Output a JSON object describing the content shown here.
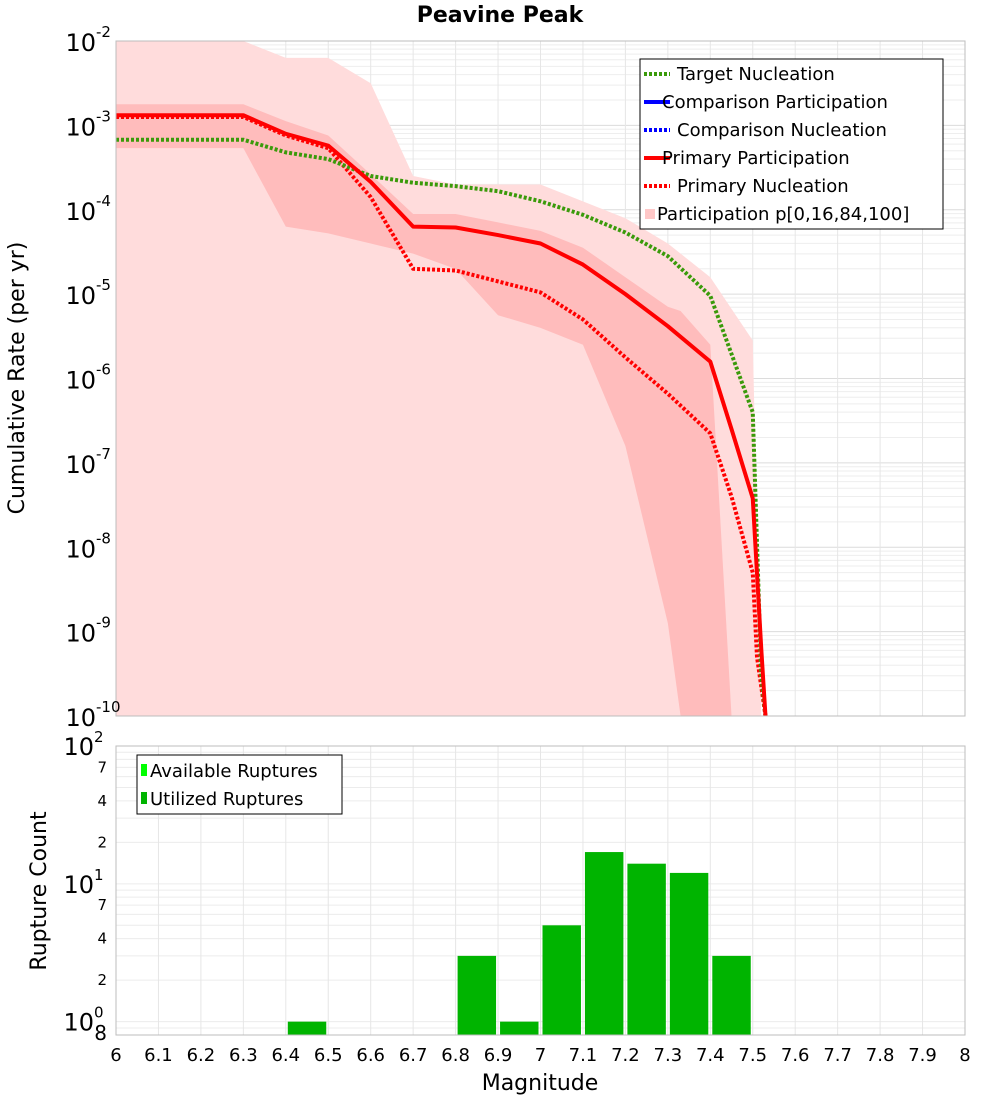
{
  "title": "Peavine Peak",
  "colors": {
    "target_nucleation": "#3a9a0a",
    "comparison": "#0000ff",
    "primary": "#ff0000",
    "band_outer": "#ffdcdc",
    "band_inner": "#ffbcbc",
    "bars": "#00b400",
    "available": "#00ff00",
    "grid": "#e8e8e8",
    "frame": "#bdbdbd"
  },
  "chart_data": [
    {
      "type": "line",
      "title": "Peavine Peak",
      "xlabel": "Magnitude",
      "ylabel": "Cumulative Rate (per yr)",
      "xlim": [
        6,
        8
      ],
      "ylim_exponent": [
        -10,
        -2
      ],
      "y_scale": "log10",
      "y_ticks": [
        {
          "base": "10",
          "exp": "-2"
        },
        {
          "base": "10",
          "exp": "-3"
        },
        {
          "base": "10",
          "exp": "-4"
        },
        {
          "base": "10",
          "exp": "-5"
        },
        {
          "base": "10",
          "exp": "-6"
        },
        {
          "base": "10",
          "exp": "-7"
        },
        {
          "base": "10",
          "exp": "-8"
        },
        {
          "base": "10",
          "exp": "-9"
        },
        {
          "base": "10",
          "exp": "-10"
        }
      ],
      "legend": {
        "position": "top-right",
        "entries": [
          {
            "label": "Target Nucleation",
            "style": "dotted",
            "color_key": "target_nucleation"
          },
          {
            "label": "Comparison Participation",
            "style": "solid",
            "color_key": "comparison"
          },
          {
            "label": "Comparison Nucleation",
            "style": "dotted",
            "color_key": "comparison"
          },
          {
            "label": "Primary Participation",
            "style": "solid",
            "color_key": "primary"
          },
          {
            "label": "Primary Nucleation",
            "style": "dotted",
            "color_key": "primary"
          },
          {
            "label": "Participation p[0,16,84,100]",
            "style": "band",
            "color_key": "band_outer"
          }
        ]
      },
      "series": [
        {
          "name": "Target Nucleation",
          "style": "dotted",
          "x": [
            6.0,
            6.3,
            6.4,
            6.5,
            6.6,
            6.7,
            6.8,
            6.9,
            7.0,
            7.1,
            7.2,
            7.3,
            7.4,
            7.5,
            7.52,
            7.53
          ],
          "log10_y": [
            -3.17,
            -3.17,
            -3.32,
            -3.4,
            -3.6,
            -3.68,
            -3.72,
            -3.78,
            -3.9,
            -4.06,
            -4.27,
            -4.55,
            -5.02,
            -6.4,
            -9.5,
            -10.0
          ]
        },
        {
          "name": "Primary Participation",
          "style": "solid",
          "x": [
            6.0,
            6.3,
            6.4,
            6.5,
            6.6,
            6.7,
            6.8,
            6.9,
            7.0,
            7.1,
            7.2,
            7.3,
            7.4,
            7.45,
            7.5,
            7.52,
            7.53
          ],
          "log10_y": [
            -2.88,
            -2.88,
            -3.1,
            -3.24,
            -3.67,
            -4.2,
            -4.21,
            -4.3,
            -4.4,
            -4.65,
            -5.0,
            -5.38,
            -5.8,
            -6.6,
            -7.42,
            -9.2,
            -10.0
          ]
        },
        {
          "name": "Primary Nucleation",
          "style": "dotted",
          "x": [
            6.0,
            6.3,
            6.4,
            6.5,
            6.6,
            6.7,
            6.8,
            6.9,
            7.0,
            7.1,
            7.2,
            7.3,
            7.4,
            7.45,
            7.5,
            7.51,
            7.53
          ],
          "log10_y": [
            -2.9,
            -2.9,
            -3.12,
            -3.27,
            -3.85,
            -4.7,
            -4.72,
            -4.85,
            -4.98,
            -5.3,
            -5.75,
            -6.18,
            -6.65,
            -7.4,
            -8.3,
            -9.3,
            -10.0
          ]
        }
      ],
      "bands": [
        {
          "name": "p0-p100",
          "x": [
            6.0,
            6.3,
            6.4,
            6.5,
            6.6,
            6.7,
            6.8,
            6.9,
            7.0,
            7.1,
            7.2,
            7.3,
            7.4,
            7.5,
            7.52
          ],
          "log10_upper": [
            -2.0,
            -2.0,
            -2.2,
            -2.2,
            -2.5,
            -3.6,
            -3.7,
            -3.7,
            -3.7,
            -3.9,
            -4.1,
            -4.4,
            -4.8,
            -5.55,
            -10.0
          ],
          "log10_lower": [
            -10.0,
            -10.0,
            -10.0,
            -10.0,
            -10.0,
            -10.0,
            -10.0,
            -10.0,
            -10.0,
            -10.0,
            -10.0,
            -10.0,
            -10.0,
            -10.0,
            -10.0
          ]
        },
        {
          "name": "p16-p84",
          "x": [
            6.0,
            6.3,
            6.4,
            6.5,
            6.6,
            6.7,
            6.8,
            6.9,
            7.0,
            7.1,
            7.2,
            7.3,
            7.33,
            7.4,
            7.45
          ],
          "log10_upper": [
            -2.75,
            -2.75,
            -2.95,
            -3.12,
            -3.58,
            -4.05,
            -4.05,
            -4.15,
            -4.25,
            -4.45,
            -4.8,
            -5.15,
            -5.2,
            -5.6,
            -10.0
          ],
          "log10_lower": [
            -3.27,
            -3.27,
            -4.2,
            -4.28,
            -4.4,
            -4.52,
            -4.7,
            -5.25,
            -5.4,
            -5.6,
            -6.8,
            -8.9,
            -10.0,
            -10.0,
            -10.0
          ]
        }
      ]
    },
    {
      "type": "bar",
      "xlabel": "Magnitude",
      "ylabel": "Rupture Count",
      "y_scale": "log10",
      "ylim": [
        0.8,
        100
      ],
      "y_tick_labels": [
        {
          "value": 100,
          "base": "10",
          "exp": "2",
          "major": true
        },
        {
          "value": 70,
          "label": "7",
          "major": false
        },
        {
          "value": 40,
          "label": "4",
          "major": false
        },
        {
          "value": 20,
          "label": "2",
          "major": false
        },
        {
          "value": 10,
          "base": "10",
          "exp": "1",
          "major": true
        },
        {
          "value": 7,
          "label": "7",
          "major": false
        },
        {
          "value": 4,
          "label": "4",
          "major": false
        },
        {
          "value": 2,
          "label": "2",
          "major": false
        },
        {
          "value": 1,
          "base": "10",
          "exp": "0",
          "major": true
        },
        {
          "value": 0.8,
          "label": "8",
          "major": false
        }
      ],
      "legend": {
        "position": "top-left",
        "entries": [
          {
            "label": "Available Ruptures",
            "color_key": "available"
          },
          {
            "label": "Utilized Ruptures",
            "color_key": "bars"
          }
        ]
      },
      "bin_width": 0.1,
      "bins": [
        6.4,
        6.8,
        6.9,
        7.0,
        7.1,
        7.2,
        7.3,
        7.4
      ],
      "values": [
        1,
        3,
        1,
        5,
        17,
        14,
        12,
        3
      ]
    }
  ],
  "x_tick_labels": [
    "6",
    "6.1",
    "6.2",
    "6.3",
    "6.4",
    "6.5",
    "6.6",
    "6.7",
    "6.8",
    "6.9",
    "7",
    "7.1",
    "7.2",
    "7.3",
    "7.4",
    "7.5",
    "7.6",
    "7.7",
    "7.8",
    "7.9",
    "8"
  ]
}
